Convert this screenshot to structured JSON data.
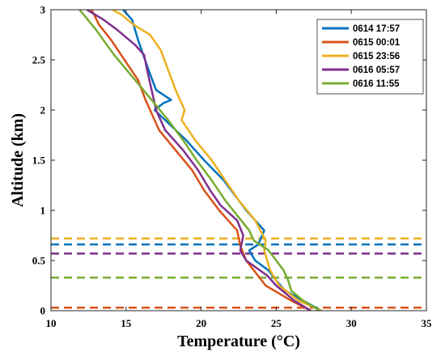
{
  "chart_data": {
    "type": "line",
    "xlabel": "Temperature (°C)",
    "ylabel": "Altitude (km)",
    "xlim": [
      10,
      35
    ],
    "ylim": [
      0,
      3
    ],
    "xticks": [
      "10",
      "15",
      "20",
      "25",
      "30",
      "35"
    ],
    "yticks": [
      "0",
      "0.5",
      "1",
      "1.5",
      "2",
      "2.5",
      "3"
    ],
    "legend_position": "top-right",
    "series": [
      {
        "name": "0614 17:57",
        "color": "#0072BD",
        "boundary_layer_height": 0.66,
        "points": [
          [
            28.0,
            0.0
          ],
          [
            26.8,
            0.1
          ],
          [
            25.6,
            0.2
          ],
          [
            25.0,
            0.3
          ],
          [
            24.5,
            0.4
          ],
          [
            23.6,
            0.5
          ],
          [
            23.2,
            0.6
          ],
          [
            23.8,
            0.66
          ],
          [
            24.2,
            0.8
          ],
          [
            23.0,
            1.0
          ],
          [
            21.5,
            1.3
          ],
          [
            20.2,
            1.5
          ],
          [
            19.0,
            1.7
          ],
          [
            17.6,
            1.9
          ],
          [
            16.9,
            2.0
          ],
          [
            17.5,
            2.07
          ],
          [
            18.0,
            2.1
          ],
          [
            17.0,
            2.2
          ],
          [
            16.5,
            2.4
          ],
          [
            15.8,
            2.7
          ],
          [
            15.4,
            2.9
          ],
          [
            14.8,
            3.0
          ]
        ]
      },
      {
        "name": "0615 00:01",
        "color": "#D95319",
        "boundary_layer_height": 0.03,
        "points": [
          [
            27.3,
            0.0
          ],
          [
            26.0,
            0.1
          ],
          [
            24.3,
            0.25
          ],
          [
            23.0,
            0.5
          ],
          [
            22.6,
            0.65
          ],
          [
            22.4,
            0.8
          ],
          [
            21.2,
            1.0
          ],
          [
            20.2,
            1.2
          ],
          [
            19.4,
            1.4
          ],
          [
            18.3,
            1.6
          ],
          [
            17.2,
            1.8
          ],
          [
            16.6,
            2.0
          ],
          [
            16.3,
            2.1
          ],
          [
            15.8,
            2.3
          ],
          [
            14.9,
            2.5
          ],
          [
            14.0,
            2.7
          ],
          [
            13.2,
            2.85
          ],
          [
            12.7,
            3.0
          ]
        ]
      },
      {
        "name": "0615 23:56",
        "color": "#EDB120",
        "boundary_layer_height": 0.72,
        "points": [
          [
            28.0,
            0.0
          ],
          [
            26.5,
            0.1
          ],
          [
            25.2,
            0.25
          ],
          [
            24.6,
            0.4
          ],
          [
            24.4,
            0.5
          ],
          [
            24.2,
            0.6
          ],
          [
            24.3,
            0.7
          ],
          [
            23.6,
            0.9
          ],
          [
            22.5,
            1.1
          ],
          [
            21.6,
            1.3
          ],
          [
            20.7,
            1.5
          ],
          [
            19.6,
            1.7
          ],
          [
            18.7,
            1.9
          ],
          [
            18.9,
            2.0
          ],
          [
            18.3,
            2.2
          ],
          [
            17.8,
            2.4
          ],
          [
            17.3,
            2.6
          ],
          [
            16.6,
            2.75
          ],
          [
            15.5,
            2.85
          ],
          [
            14.7,
            2.95
          ],
          [
            14.1,
            3.0
          ]
        ]
      },
      {
        "name": "0616 05:57",
        "color": "#7E2F8E",
        "boundary_layer_height": 0.57,
        "points": [
          [
            27.3,
            0.0
          ],
          [
            26.2,
            0.1
          ],
          [
            25.0,
            0.25
          ],
          [
            24.4,
            0.35
          ],
          [
            23.0,
            0.5
          ],
          [
            22.6,
            0.6
          ],
          [
            22.8,
            0.75
          ],
          [
            22.4,
            0.9
          ],
          [
            21.3,
            1.05
          ],
          [
            20.6,
            1.2
          ],
          [
            19.8,
            1.4
          ],
          [
            18.8,
            1.6
          ],
          [
            17.6,
            1.8
          ],
          [
            17.0,
            2.0
          ],
          [
            16.7,
            2.2
          ],
          [
            16.4,
            2.4
          ],
          [
            16.2,
            2.55
          ],
          [
            15.6,
            2.65
          ],
          [
            14.4,
            2.8
          ],
          [
            13.5,
            2.9
          ],
          [
            12.4,
            3.0
          ]
        ]
      },
      {
        "name": "0616 11:55",
        "color": "#77AC30",
        "boundary_layer_height": 0.33,
        "points": [
          [
            27.9,
            0.0
          ],
          [
            26.8,
            0.1
          ],
          [
            26.0,
            0.2
          ],
          [
            25.8,
            0.3
          ],
          [
            25.5,
            0.4
          ],
          [
            25.0,
            0.5
          ],
          [
            24.5,
            0.6
          ],
          [
            23.5,
            0.7
          ],
          [
            23.2,
            0.8
          ],
          [
            22.4,
            0.95
          ],
          [
            21.6,
            1.1
          ],
          [
            20.7,
            1.3
          ],
          [
            19.7,
            1.5
          ],
          [
            18.8,
            1.7
          ],
          [
            17.8,
            1.9
          ],
          [
            16.7,
            2.1
          ],
          [
            15.6,
            2.3
          ],
          [
            14.2,
            2.55
          ],
          [
            13.0,
            2.8
          ],
          [
            11.9,
            3.0
          ]
        ]
      }
    ]
  }
}
